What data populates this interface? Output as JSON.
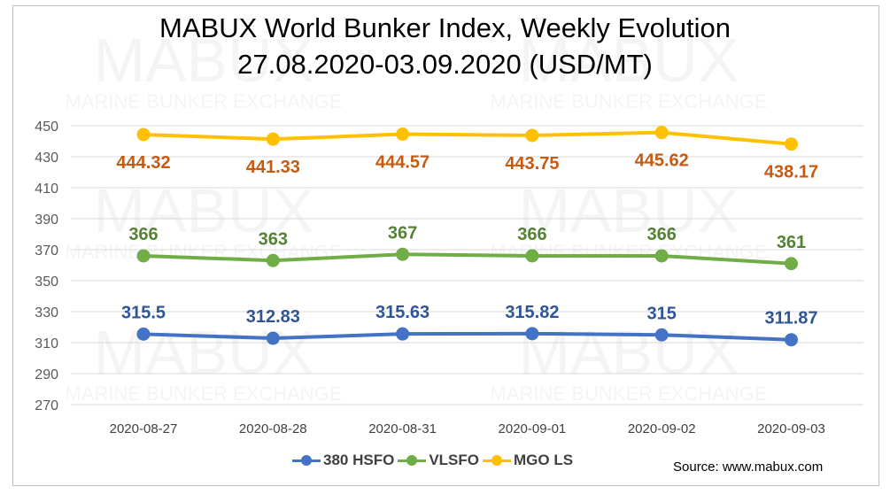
{
  "title_line1": "MABUX World Bunker Index, Weekly Evolution",
  "title_line2": "27.08.2020-03.09.2020 (USD/MT)",
  "watermark": {
    "big": "MABUX",
    "small": "MARINE BUNKER EXCHANGE"
  },
  "source": "Source: www.mabux.com",
  "colors": {
    "hsfo": "#4472c4",
    "vlsfo": "#70ad47",
    "mgo": "#ffc000",
    "mgo_label": "#c55a11",
    "hsfo_label": "#2f5597",
    "vlsfo_label": "#548235",
    "grid": "#d9d9d9"
  },
  "chart_data": {
    "type": "line",
    "title": "MABUX World Bunker Index, Weekly Evolution 27.08.2020-03.09.2020 (USD/MT)",
    "categories": [
      "2020-08-27",
      "2020-08-28",
      "2020-08-31",
      "2020-09-01",
      "2020-09-02",
      "2020-09-03"
    ],
    "ylim": [
      270,
      450
    ],
    "yticks": [
      270,
      290,
      310,
      330,
      350,
      370,
      390,
      410,
      430,
      450
    ],
    "grid": true,
    "legend_position": "bottom",
    "series": [
      {
        "key": "hsfo",
        "name": "380 HSFO",
        "values": [
          315.5,
          312.83,
          315.63,
          315.82,
          315,
          311.87
        ],
        "labels": [
          "315.5",
          "312.83",
          "315.63",
          "315.82",
          "315",
          "311.87"
        ]
      },
      {
        "key": "vlsfo",
        "name": "VLSFO",
        "values": [
          366,
          363,
          367,
          366,
          366,
          361
        ],
        "labels": [
          "366",
          "363",
          "367",
          "366",
          "366",
          "361"
        ]
      },
      {
        "key": "mgo",
        "name": "MGO LS",
        "values": [
          444.32,
          441.33,
          444.57,
          443.75,
          445.62,
          438.17
        ],
        "labels": [
          "444.32",
          "441.33",
          "444.57",
          "443.75",
          "445.62",
          "438.17"
        ]
      }
    ]
  }
}
